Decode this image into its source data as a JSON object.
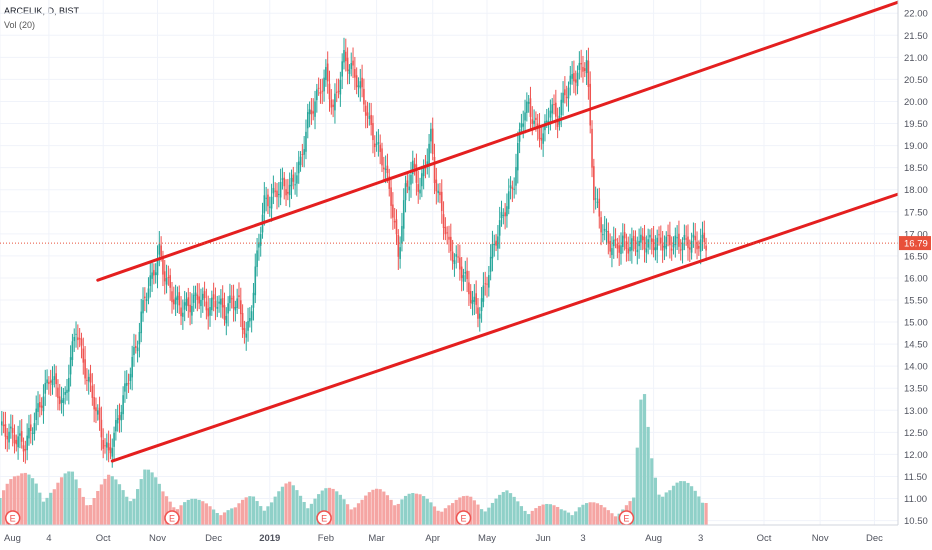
{
  "header": {
    "symbol_line": "ARCELIK, D, BIST",
    "volume_line": "Vol (20)"
  },
  "price_badge": {
    "label": "16.79",
    "color": "#e8503a"
  },
  "colors": {
    "up": "#26a69a",
    "down": "#ef5350",
    "channel": "#e41f1f",
    "vol_up": "#8fd0c8",
    "vol_down": "#f5a5a3",
    "grid": "#f0f3fa",
    "axis_text": "#50535e",
    "earnings": "#ef5350"
  },
  "earnings_marker": {
    "label": "E"
  },
  "chart_data": {
    "type": "candlestick",
    "title": "",
    "symbol": "ARCELIK",
    "interval": "D",
    "exchange": "BIST",
    "current_price": 16.79,
    "ylim": [
      10.4,
      22.3
    ],
    "y_ticks": [
      "10.50",
      "11.00",
      "11.50",
      "12.00",
      "12.50",
      "13.00",
      "13.50",
      "14.00",
      "14.50",
      "15.00",
      "15.50",
      "16.00",
      "16.50",
      "17.00",
      "17.50",
      "18.00",
      "18.50",
      "19.00",
      "19.50",
      "20.00",
      "20.50",
      "21.00",
      "21.50",
      "22.00"
    ],
    "x_ticks": [
      "Aug",
      "4",
      "Oct",
      "Nov",
      "Dec",
      "2019",
      "Feb",
      "Mar",
      "Apr",
      "May",
      "Jun",
      "3",
      "Aug",
      "3",
      "Oct",
      "Nov",
      "Dec"
    ],
    "x_tick_bold": "2019",
    "x_tick_days": [
      0,
      27,
      57,
      87,
      118,
      149,
      180,
      208,
      239,
      269,
      300,
      322,
      361,
      387,
      422,
      453,
      483
    ],
    "price_series": {
      "days": [
        0,
        8,
        14,
        20,
        28,
        35,
        42,
        47,
        52,
        57,
        60,
        64,
        70,
        76,
        80,
        84,
        88,
        90,
        95,
        100,
        105,
        110,
        115,
        120,
        124,
        128,
        132,
        136,
        140,
        143,
        146,
        150,
        155,
        160,
        166,
        170,
        175,
        180,
        184,
        190,
        196,
        200,
        204,
        208,
        212,
        216,
        220,
        224,
        228,
        232,
        236,
        238,
        240,
        244,
        248,
        252,
        256,
        260,
        264,
        268,
        272,
        276,
        280,
        284,
        288,
        292,
        296,
        300,
        304,
        308,
        312,
        316,
        320,
        324,
        328,
        332,
        336,
        340,
        344,
        348,
        352,
        356,
        360,
        364,
        368,
        372,
        376,
        380,
        384,
        388,
        390
      ],
      "values": [
        12.6,
        12.4,
        12.2,
        12.9,
        13.8,
        13.1,
        14.9,
        13.9,
        13.2,
        12.3,
        12.0,
        12.6,
        13.6,
        14.6,
        15.6,
        16.0,
        16.6,
        16.2,
        15.6,
        15.3,
        15.4,
        15.6,
        15.3,
        15.5,
        15.2,
        15.5,
        15.4,
        14.6,
        15.7,
        16.9,
        17.7,
        17.8,
        18.1,
        18.0,
        18.6,
        19.6,
        20.1,
        20.6,
        19.8,
        21.0,
        20.6,
        20.2,
        19.5,
        19.0,
        18.6,
        17.8,
        16.5,
        18.0,
        18.5,
        18.0,
        18.8,
        19.2,
        18.3,
        17.5,
        16.7,
        16.4,
        16.1,
        15.6,
        15.2,
        15.8,
        16.6,
        17.2,
        17.7,
        18.2,
        19.6,
        19.9,
        19.4,
        19.2,
        19.9,
        19.6,
        20.2,
        20.5,
        20.7,
        20.9,
        17.9,
        17.2,
        16.8,
        16.7,
        16.8,
        16.7,
        16.8,
        16.8,
        16.8,
        16.8,
        16.8,
        16.8,
        16.8,
        16.8,
        16.8,
        16.8,
        16.79
      ]
    },
    "volume_series": {
      "days": [
        0,
        10,
        20,
        30,
        40,
        50,
        60,
        70,
        80,
        90,
        100,
        110,
        120,
        130,
        140,
        150,
        160,
        170,
        180,
        190,
        200,
        210,
        220,
        230,
        240,
        250,
        260,
        270,
        280,
        290,
        300,
        310,
        320,
        330,
        340,
        350,
        355,
        360,
        365,
        370
      ],
      "values": [
        1.0,
        0.8,
        0.9,
        0.7,
        0.9,
        0.6,
        0.8,
        0.7,
        1.0,
        0.6,
        0.5,
        0.4,
        0.35,
        0.3,
        0.55,
        0.5,
        0.7,
        0.6,
        0.6,
        0.55,
        0.5,
        0.6,
        0.65,
        0.5,
        0.45,
        0.4,
        0.5,
        0.45,
        0.55,
        0.4,
        0.35,
        0.3,
        0.4,
        0.35,
        0.3,
        0.45,
        2.4,
        1.4,
        0.9,
        0.7
      ]
    },
    "channel_lines": [
      {
        "name": "",
        "start": {
          "day": 54,
          "value": 15.95
        },
        "end": {
          "day": 496,
          "value": 22.25
        }
      },
      {
        "name": "",
        "start": {
          "day": 62,
          "value": 11.85
        },
        "end": {
          "day": 496,
          "value": 17.9
        }
      }
    ],
    "earnings_days": [
      7,
      95,
      179,
      256,
      346
    ]
  }
}
